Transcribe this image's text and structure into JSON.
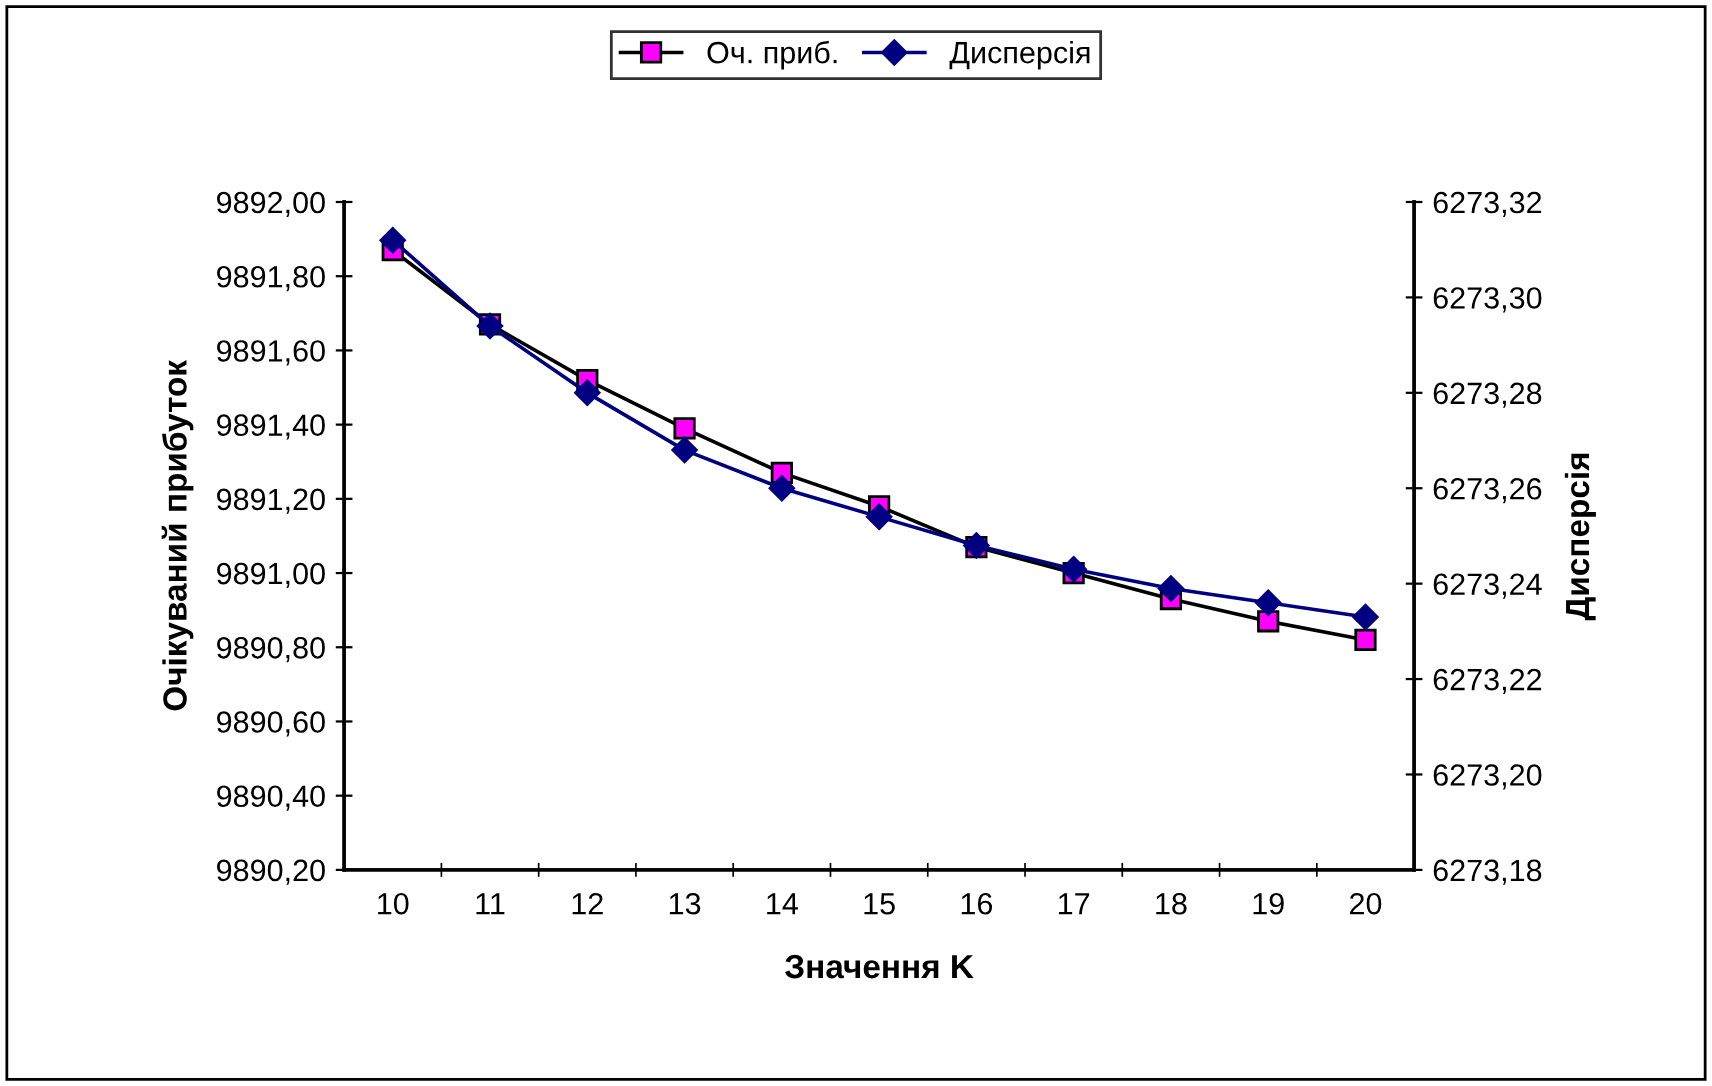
{
  "chart_data": {
    "type": "line",
    "xlabel": "Значення K",
    "ylabel": "Очікуваний прибуток",
    "y2label": "Дисперсія",
    "categories": [
      "10",
      "11",
      "12",
      "13",
      "14",
      "15",
      "16",
      "17",
      "18",
      "19",
      "20"
    ],
    "series": [
      {
        "name": "Оч. приб.",
        "color": "#ff00ff",
        "marker": "square",
        "values": [
          9891.87,
          9891.67,
          9891.52,
          9891.39,
          9891.27,
          9891.18,
          9891.07,
          9891.0,
          9890.93,
          9890.87,
          9890.82
        ]
      },
      {
        "name": "Дисперсія",
        "color": "#000080",
        "marker": "diamond",
        "axis": "y2",
        "values": [
          6273.312,
          6273.294,
          6273.28,
          6273.268,
          6273.26,
          6273.254,
          6273.248,
          6273.243,
          6273.239,
          6273.236,
          6273.233
        ]
      }
    ],
    "ylim": [
      9890.2,
      9892.0
    ],
    "yticks": [
      {
        "value": 9890.2,
        "label": "9890,20"
      },
      {
        "value": 9890.4,
        "label": "9890,40"
      },
      {
        "value": 9890.6,
        "label": "9890,60"
      },
      {
        "value": 9890.8,
        "label": "9890,80"
      },
      {
        "value": 9891.0,
        "label": "9891,00"
      },
      {
        "value": 9891.2,
        "label": "9891,20"
      },
      {
        "value": 9891.4,
        "label": "9891,40"
      },
      {
        "value": 9891.6,
        "label": "9891,60"
      },
      {
        "value": 9891.8,
        "label": "9891,80"
      },
      {
        "value": 9892.0,
        "label": "9892,00"
      }
    ],
    "y2lim": [
      6273.18,
      6273.32
    ],
    "y2ticks": [
      {
        "value": 6273.18,
        "label": "6273,18"
      },
      {
        "value": 6273.2,
        "label": "6273,20"
      },
      {
        "value": 6273.22,
        "label": "6273,22"
      },
      {
        "value": 6273.24,
        "label": "6273,24"
      },
      {
        "value": 6273.26,
        "label": "6273,26"
      },
      {
        "value": 6273.28,
        "label": "6273,28"
      },
      {
        "value": 6273.3,
        "label": "6273,30"
      },
      {
        "value": 6273.32,
        "label": "6273,32"
      }
    ],
    "grid": false,
    "legend": "top",
    "line_style": "solid"
  }
}
